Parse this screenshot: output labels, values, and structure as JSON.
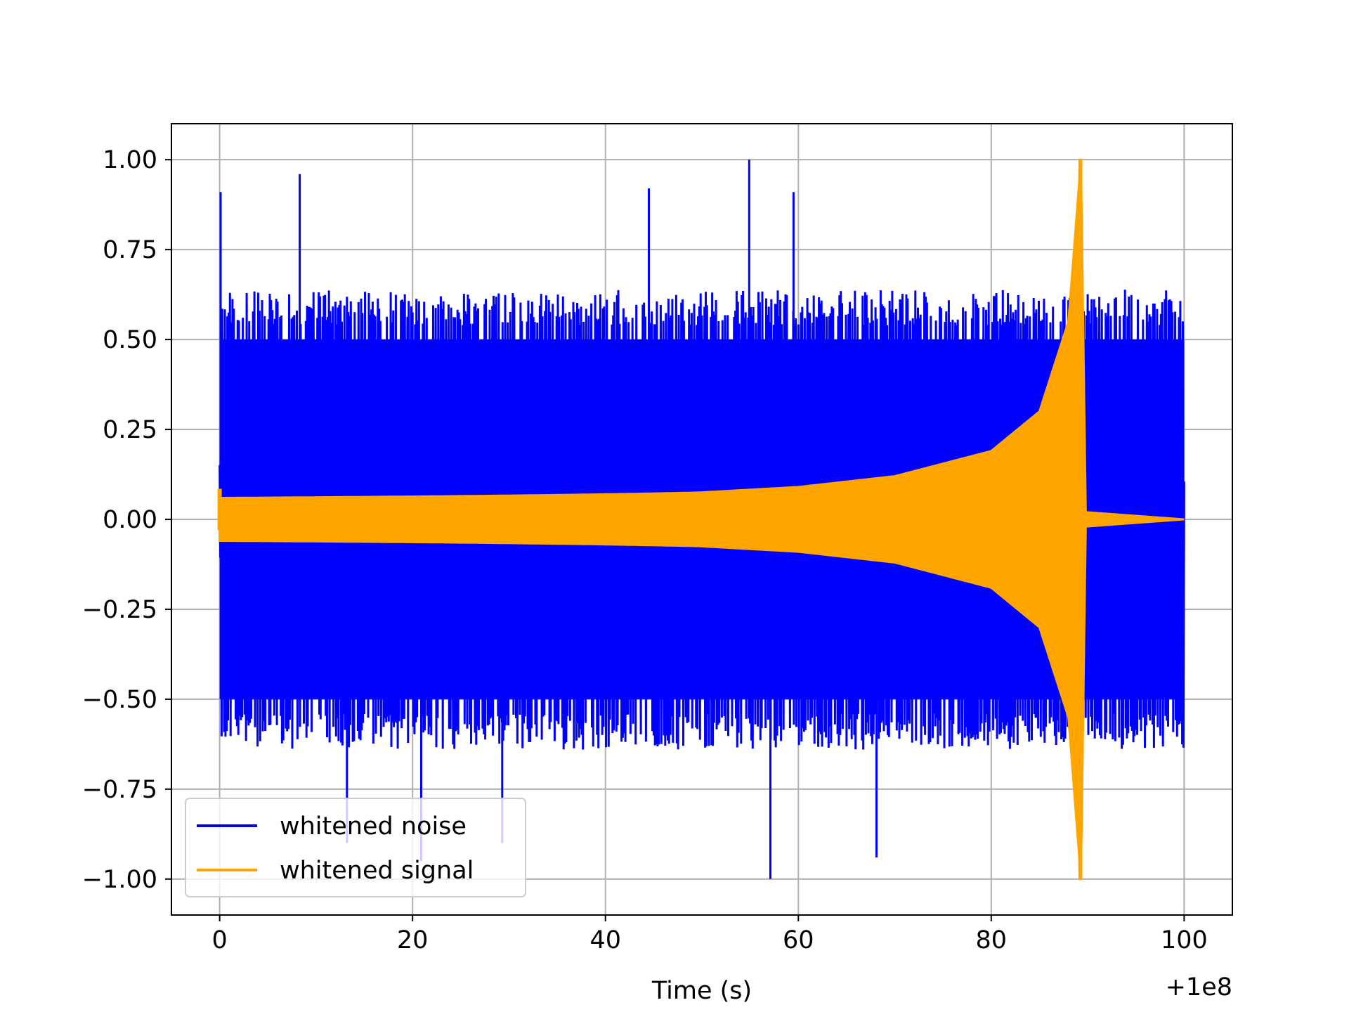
{
  "chart_data": {
    "type": "line",
    "title": "",
    "xlabel": "Time (s)",
    "ylabel": "",
    "x_offset_label": "+1e8",
    "xlim": [
      -5,
      105
    ],
    "ylim": [
      -1.1,
      1.1
    ],
    "x_ticks": [
      0,
      20,
      40,
      60,
      80,
      100
    ],
    "x_tick_labels": [
      "0",
      "20",
      "40",
      "60",
      "80",
      "100"
    ],
    "y_ticks": [
      1.0,
      0.75,
      0.5,
      0.25,
      0.0,
      -0.25,
      -0.5,
      -0.75,
      -1.0
    ],
    "y_tick_labels": [
      "1.00",
      "0.75",
      "0.50",
      "0.25",
      "0.00",
      "−0.25",
      "−0.50",
      "−0.75",
      "−1.00"
    ],
    "grid": true,
    "legend_position": "lower-left",
    "series": [
      {
        "name": "whitened noise",
        "color": "#0000ff",
        "x_range": [
          0,
          100
        ],
        "typical_envelope": [
          -0.6,
          0.6
        ],
        "peaks": [
          {
            "x": 0.1,
            "y": 0.91
          },
          {
            "x": 8.3,
            "y": 0.96
          },
          {
            "x": 54.9,
            "y": 1.0
          },
          {
            "x": 44.5,
            "y": 0.92
          },
          {
            "x": 59.5,
            "y": 0.91
          },
          {
            "x": 57.1,
            "y": -1.0
          },
          {
            "x": 68.1,
            "y": -0.94
          },
          {
            "x": 20.9,
            "y": -0.95
          },
          {
            "x": 29.3,
            "y": -0.9
          },
          {
            "x": 13.2,
            "y": -0.9
          },
          {
            "x": 89.3,
            "y": 0.85
          }
        ]
      },
      {
        "name": "whitened signal",
        "color": "#ffa500",
        "x_range": [
          0,
          100
        ],
        "envelope": [
          {
            "x": 0,
            "y": 0.04
          },
          {
            "x": 20,
            "y": 0.045
          },
          {
            "x": 40,
            "y": 0.06
          },
          {
            "x": 60,
            "y": 0.09
          },
          {
            "x": 70,
            "y": 0.12
          },
          {
            "x": 80,
            "y": 0.19
          },
          {
            "x": 85,
            "y": 0.3
          },
          {
            "x": 88,
            "y": 0.55
          },
          {
            "x": 89.3,
            "y": 1.0
          },
          {
            "x": 89.8,
            "y": 0.02
          },
          {
            "x": 100,
            "y": 0.0
          }
        ]
      }
    ]
  }
}
